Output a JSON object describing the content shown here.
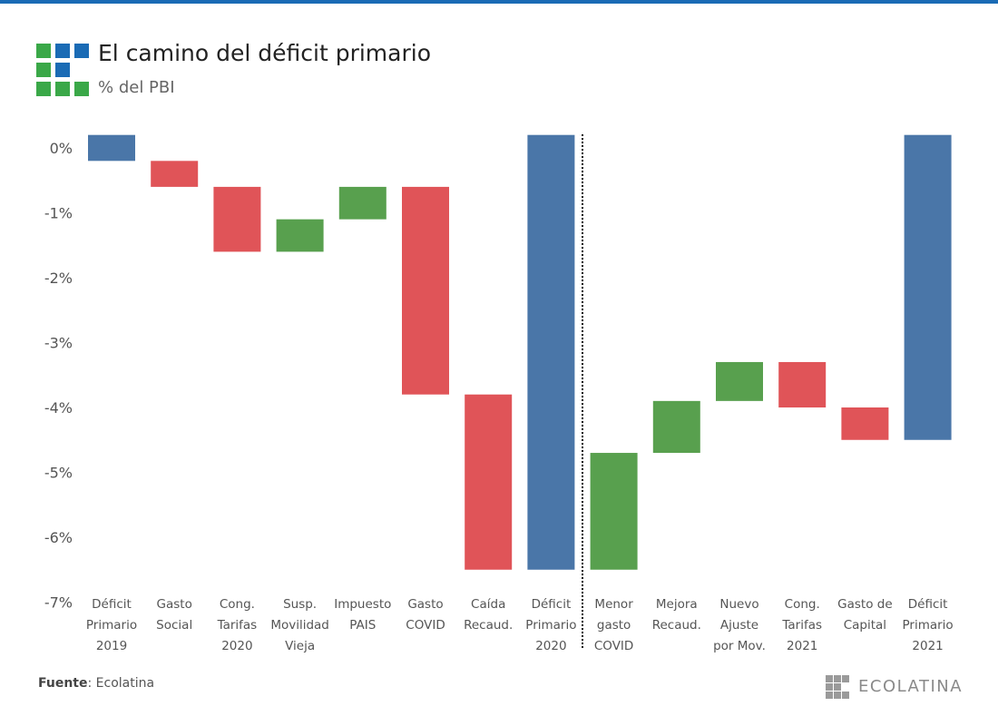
{
  "header": {
    "title": "El camino del déficit primario",
    "subtitle": "% del PBI"
  },
  "footer": {
    "source_label": "Fuente",
    "source_text": ": Ecolatina",
    "brand": "ECOLATINA"
  },
  "logo": {
    "cells": [
      {
        "row": 0,
        "col": 0,
        "color": "#3aa848"
      },
      {
        "row": 0,
        "col": 1,
        "color": "#1a6bb5"
      },
      {
        "row": 0,
        "col": 2,
        "color": "#1a6bb5"
      },
      {
        "row": 1,
        "col": 0,
        "color": "#3aa848"
      },
      {
        "row": 1,
        "col": 1,
        "color": "#1a6bb5"
      },
      {
        "row": 2,
        "col": 0,
        "color": "#3aa848"
      },
      {
        "row": 2,
        "col": 1,
        "color": "#3aa848"
      },
      {
        "row": 2,
        "col": 2,
        "color": "#3aa848"
      }
    ]
  },
  "brand_logo": {
    "cells": [
      {
        "row": 0,
        "col": 0
      },
      {
        "row": 0,
        "col": 1
      },
      {
        "row": 0,
        "col": 2
      },
      {
        "row": 1,
        "col": 0
      },
      {
        "row": 1,
        "col": 1
      },
      {
        "row": 2,
        "col": 0
      },
      {
        "row": 2,
        "col": 1
      },
      {
        "row": 2,
        "col": 2
      }
    ]
  },
  "colors": {
    "total": "#4a76a8",
    "increase": "#e05458",
    "decrease": "#58a04e",
    "axis_text": "#555555",
    "accent": "#1a6bb5"
  },
  "chart_data": {
    "type": "bar",
    "subtype": "waterfall",
    "title": "El camino del déficit primario",
    "ylabel": "% del PBI",
    "ylim": [
      -7,
      0.2
    ],
    "yticks": [
      0,
      -1,
      -2,
      -3,
      -4,
      -5,
      -6,
      -7
    ],
    "ytick_labels": [
      "0%",
      "-1%",
      "-2%",
      "-3%",
      "-4%",
      "-5%",
      "-6%",
      "-7%"
    ],
    "grid": false,
    "separator_after_index": 7,
    "bars": [
      {
        "label": [
          "Déficit",
          "Primario",
          "2019"
        ],
        "start": 0.2,
        "end": -0.2,
        "kind": "total"
      },
      {
        "label": [
          "Gasto",
          "Social"
        ],
        "start": -0.2,
        "end": -0.6,
        "kind": "increase"
      },
      {
        "label": [
          "Cong.",
          "Tarifas",
          "2020"
        ],
        "start": -0.6,
        "end": -1.6,
        "kind": "increase"
      },
      {
        "label": [
          "Susp.",
          "Movilidad",
          "Vieja"
        ],
        "start": -1.6,
        "end": -1.1,
        "kind": "decrease"
      },
      {
        "label": [
          "Impuesto",
          "PAIS"
        ],
        "start": -1.1,
        "end": -0.6,
        "kind": "decrease"
      },
      {
        "label": [
          "Gasto",
          "COVID"
        ],
        "start": -0.6,
        "end": -3.8,
        "kind": "increase"
      },
      {
        "label": [
          "Caída",
          "Recaud."
        ],
        "start": -3.8,
        "end": -6.5,
        "kind": "increase"
      },
      {
        "label": [
          "Déficit",
          "Primario",
          "2020"
        ],
        "start": 0.2,
        "end": -6.5,
        "kind": "total"
      },
      {
        "label": [
          "Menor",
          "gasto",
          "COVID"
        ],
        "start": -6.5,
        "end": -4.7,
        "kind": "decrease"
      },
      {
        "label": [
          "Mejora",
          "Recaud."
        ],
        "start": -4.7,
        "end": -3.9,
        "kind": "decrease"
      },
      {
        "label": [
          "Nuevo",
          "Ajuste",
          "por Mov."
        ],
        "start": -3.9,
        "end": -3.3,
        "kind": "decrease"
      },
      {
        "label": [
          "Cong.",
          "Tarifas",
          "2021"
        ],
        "start": -3.3,
        "end": -4.0,
        "kind": "increase"
      },
      {
        "label": [
          "Gasto de",
          "Capital"
        ],
        "start": -4.0,
        "end": -4.5,
        "kind": "increase"
      },
      {
        "label": [
          "Déficit",
          "Primario",
          "2021"
        ],
        "start": 0.2,
        "end": -4.5,
        "kind": "total"
      }
    ]
  }
}
